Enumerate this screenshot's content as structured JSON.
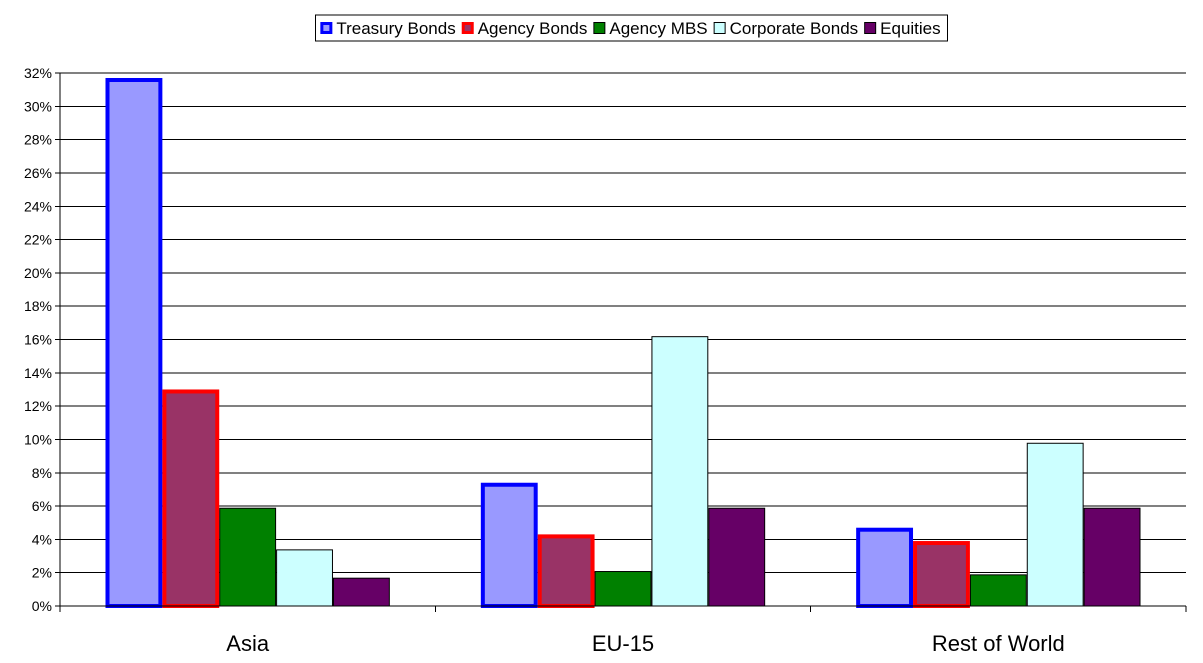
{
  "chart_data": {
    "type": "bar",
    "title": "",
    "xlabel": "",
    "ylabel": "",
    "categories": [
      "Asia",
      "EU-15",
      "Rest of World"
    ],
    "series": [
      {
        "name": "Treasury Bonds",
        "values": [
          31.7,
          7.4,
          4.7
        ],
        "fill": "#9999ff",
        "stroke": "#0000ff",
        "stroke_width": 4
      },
      {
        "name": "Agency Bonds",
        "values": [
          13.0,
          4.3,
          3.9
        ],
        "fill": "#993366",
        "stroke": "#ff0000",
        "stroke_width": 4
      },
      {
        "name": "Agency MBS",
        "values": [
          5.9,
          2.1,
          1.9
        ],
        "fill": "#008000",
        "stroke": "#000000",
        "stroke_width": 1
      },
      {
        "name": "Corporate Bonds",
        "values": [
          3.4,
          16.2,
          9.8
        ],
        "fill": "#ccffff",
        "stroke": "#000000",
        "stroke_width": 1
      },
      {
        "name": "Equities",
        "values": [
          1.7,
          5.9,
          5.9
        ],
        "fill": "#660066",
        "stroke": "#000000",
        "stroke_width": 1
      }
    ],
    "ylim": [
      0,
      32
    ],
    "y_ticks": [
      "0%",
      "2%",
      "4%",
      "6%",
      "8%",
      "10%",
      "12%",
      "14%",
      "16%",
      "18%",
      "20%",
      "22%",
      "24%",
      "26%",
      "28%",
      "30%",
      "32%"
    ],
    "grid": true,
    "legend_position": "top-center"
  }
}
